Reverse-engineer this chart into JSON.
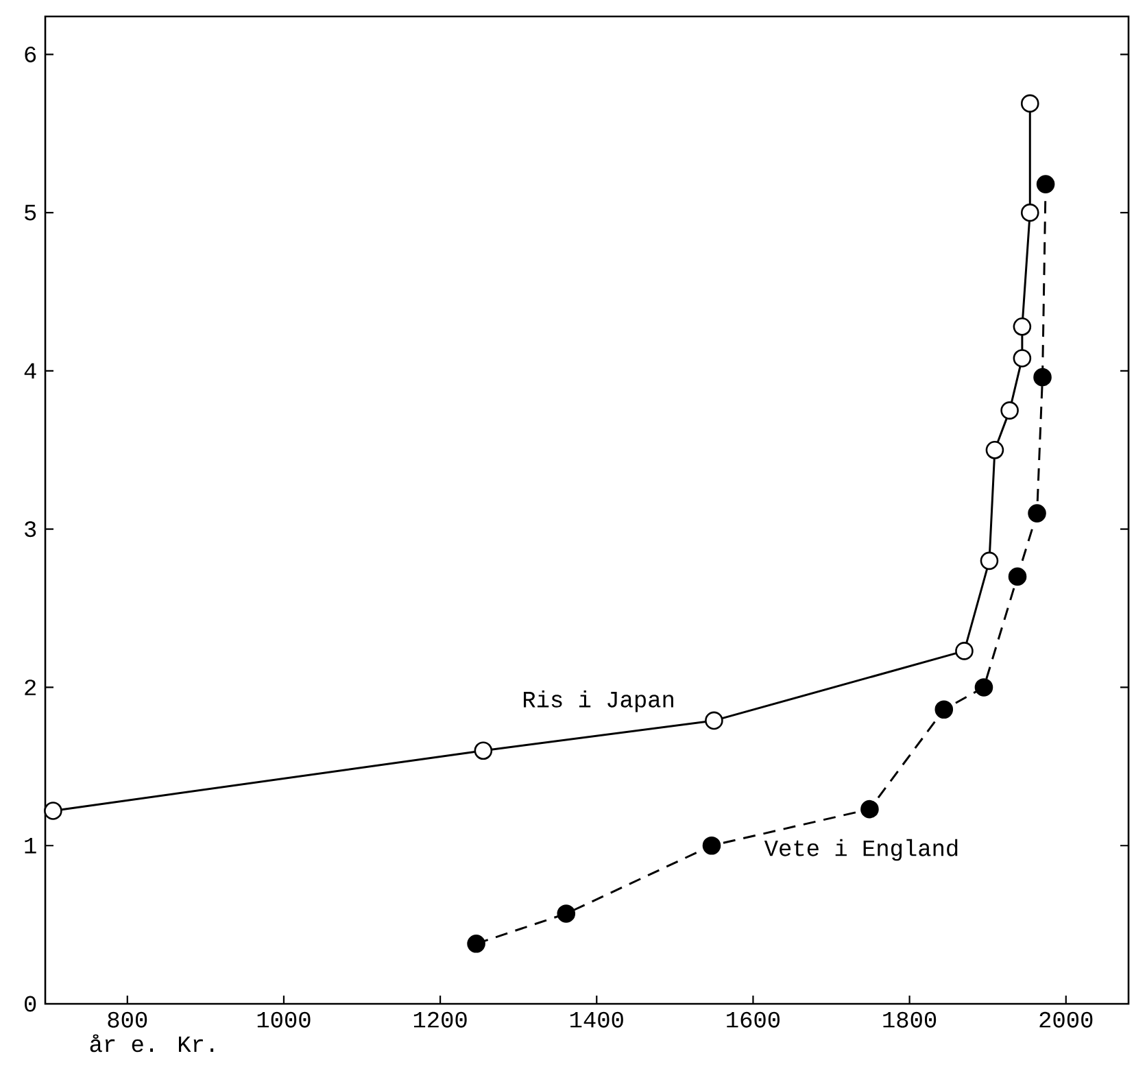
{
  "chart_data": {
    "type": "line",
    "xlabel": "år e. Kr.",
    "x": [
      705,
      1255,
      1550,
      1870,
      1902,
      1909,
      1928,
      1944,
      1944,
      1954,
      1954
    ],
    "series": [
      {
        "name": "Ris i Japan",
        "color": "#000000",
        "marker": "circle",
        "line_style": "solid",
        "values": [
          1.22,
          1.6,
          1.79,
          2.23,
          2.8,
          3.5,
          3.75,
          4.08,
          4.28,
          5.0,
          5.69
        ]
      },
      {
        "name": "Vete i England",
        "color": "#000000",
        "marker": "circle",
        "line_style": "dashed",
        "x": [
          1246,
          1361,
          1547,
          1749,
          1844,
          1895,
          1938,
          1963,
          1970,
          1974
        ],
        "values": [
          0.38,
          0.57,
          1.0,
          1.23,
          1.86,
          2.0,
          2.7,
          3.1,
          3.96,
          5.18
        ]
      }
    ],
    "xlim": [
      695,
      2080
    ],
    "ylim": [
      0,
      6.24
    ],
    "xticks": [
      800,
      1000,
      1200,
      1400,
      1600,
      1800,
      2000
    ],
    "yticks": [
      0,
      1,
      2,
      3,
      4,
      5,
      6
    ],
    "legend": false
  }
}
